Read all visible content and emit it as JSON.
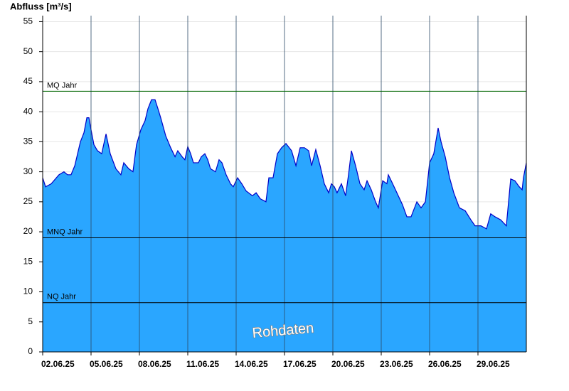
{
  "chart_data": {
    "type": "area",
    "y_label": "Abfluss [m³/s]",
    "annotation": "Rohdaten",
    "x": [
      2.0,
      2.18,
      2.53,
      3.01,
      3.32,
      3.54,
      3.76,
      3.99,
      4.34,
      4.56,
      4.74,
      4.87,
      5.0,
      5.18,
      5.4,
      5.66,
      5.93,
      6.19,
      6.54,
      6.85,
      7.03,
      7.34,
      7.6,
      7.82,
      8.09,
      8.35,
      8.53,
      8.75,
      8.97,
      9.15,
      9.32,
      9.63,
      9.94,
      10.21,
      10.38,
      10.65,
      10.82,
      11.0,
      11.18,
      11.35,
      11.66,
      11.84,
      12.06,
      12.24,
      12.41,
      12.72,
      12.94,
      13.12,
      13.38,
      13.65,
      13.82,
      14.09,
      14.35,
      14.62,
      15.01,
      15.24,
      15.5,
      15.85,
      16.03,
      16.29,
      16.56,
      16.82,
      17.09,
      17.44,
      17.71,
      17.97,
      18.24,
      18.5,
      18.68,
      18.94,
      19.21,
      19.47,
      19.74,
      19.91,
      20.09,
      20.26,
      20.53,
      20.79,
      20.97,
      21.15,
      21.41,
      21.68,
      21.94,
      22.12,
      22.38,
      22.65,
      22.82,
      23.09,
      23.35,
      23.44,
      23.71,
      23.97,
      24.32,
      24.59,
      24.85,
      25.21,
      25.47,
      25.74,
      26.0,
      26.26,
      26.53,
      26.71,
      26.97,
      27.24,
      27.5,
      27.85,
      28.21,
      28.56,
      28.82,
      29.18,
      29.53,
      29.79,
      30.06,
      30.41,
      30.76,
      31.03,
      31.29,
      31.56,
      31.74,
      31.82,
      32.0
    ],
    "values": [
      29,
      27.5,
      28,
      29.5,
      30,
      29.5,
      29.5,
      31,
      35,
      36.5,
      39,
      39,
      37,
      34.5,
      33.5,
      33,
      36.3,
      33,
      30.5,
      29.5,
      31.5,
      30.5,
      30,
      34.5,
      37,
      38.5,
      40.5,
      42,
      42,
      40.5,
      39,
      36,
      34,
      32.5,
      33.5,
      32.5,
      32,
      34.2,
      33,
      31.5,
      31.5,
      32.5,
      33,
      32,
      30.5,
      30,
      32,
      31.5,
      29.5,
      28,
      27.5,
      29,
      28,
      26.8,
      26,
      26.5,
      25.5,
      25,
      29,
      29,
      33,
      34,
      34.7,
      33.5,
      31,
      34,
      34,
      33.5,
      31,
      33.7,
      31,
      28,
      26.5,
      28,
      27.5,
      26.5,
      28,
      26,
      29.5,
      33.5,
      31,
      28,
      27,
      28.5,
      27,
      25,
      24,
      28.5,
      28,
      29.5,
      28,
      26.5,
      24.5,
      22.5,
      22.5,
      25,
      24,
      25,
      31.5,
      33,
      37.3,
      35,
      32.5,
      29,
      26.5,
      24,
      23.5,
      22,
      21,
      21,
      20.5,
      23,
      22.5,
      22,
      21,
      28.8,
      28.5,
      27.5,
      27,
      29,
      31.5
    ],
    "color": "#2aa6ff",
    "line_color": "#0000c8",
    "xlim": [
      2,
      32
    ],
    "xticks": [
      {
        "value": 2,
        "label": "02.06.25"
      },
      {
        "value": 5,
        "label": "05.06.25"
      },
      {
        "value": 8,
        "label": "08.06.25"
      },
      {
        "value": 11,
        "label": "11.06.25"
      },
      {
        "value": 14,
        "label": "14.06.25"
      },
      {
        "value": 17,
        "label": "17.06.25"
      },
      {
        "value": 20,
        "label": "20.06.25"
      },
      {
        "value": 23,
        "label": "23.06.25"
      },
      {
        "value": 26,
        "label": "26.06.25"
      },
      {
        "value": 29,
        "label": "29.06.25"
      }
    ],
    "ylim": [
      0,
      56
    ],
    "yticks": [
      0,
      5,
      10,
      15,
      20,
      25,
      30,
      35,
      40,
      45,
      50,
      55
    ],
    "grid": true,
    "reference_lines": [
      {
        "label": "MQ Jahr",
        "value": 43.4,
        "color": "#006400"
      },
      {
        "label": "MNQ Jahr",
        "value": 19.0,
        "color": "#000000"
      },
      {
        "label": "NQ Jahr",
        "value": 8.2,
        "color": "#000000"
      }
    ]
  }
}
